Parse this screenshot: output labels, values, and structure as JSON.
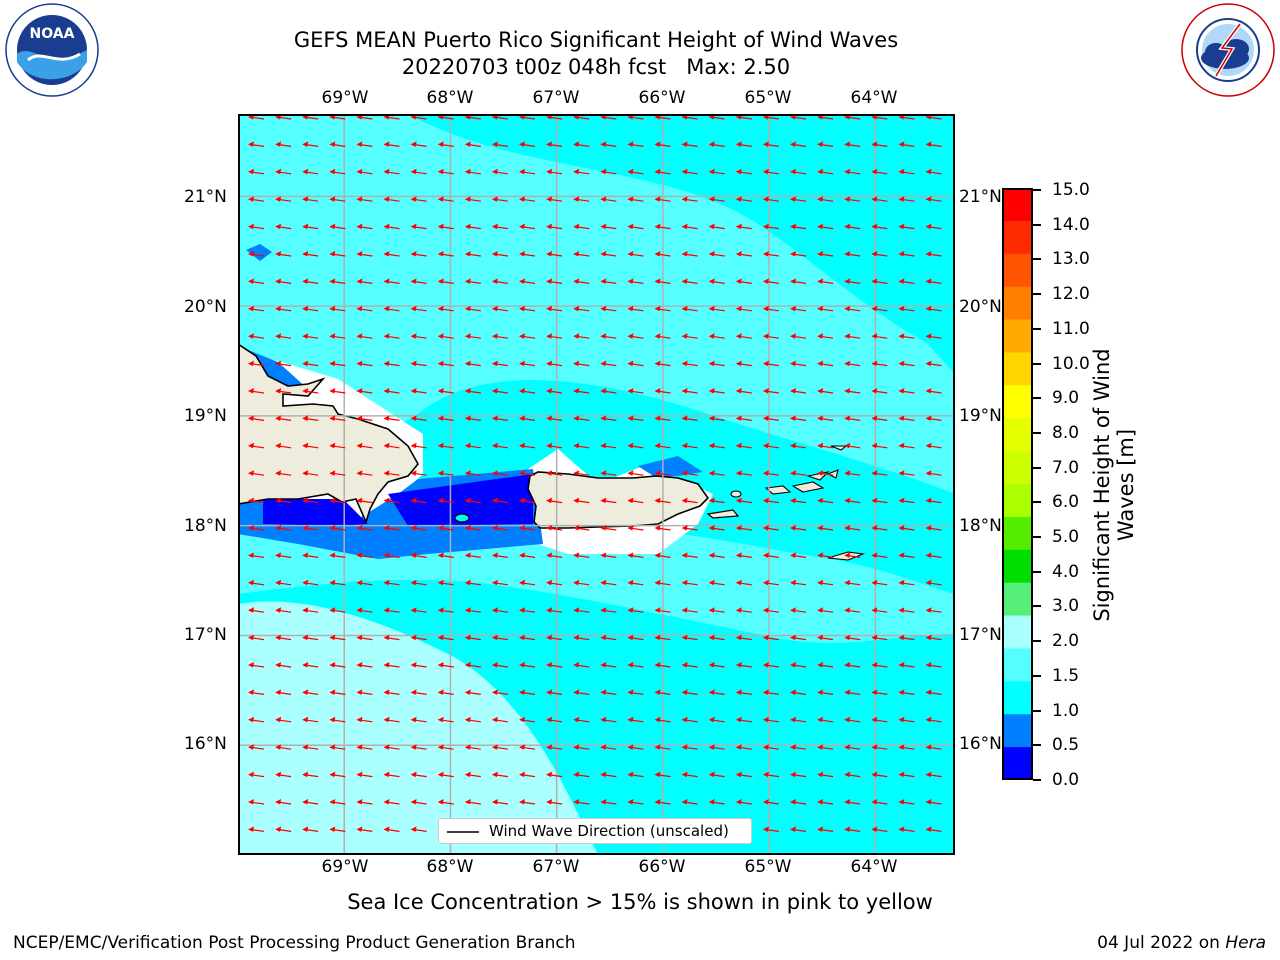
{
  "header": {
    "title_line1": "GEFS MEAN Puerto Rico Significant Height of Wind Waves",
    "title_line2": "20220703 t00z 048h fcst   Max: 2.50"
  },
  "logos": {
    "noaa": {
      "text": "NOAA",
      "ring_text": "NATIONAL OCEANIC AND ATMOSPHERIC ADMINISTRATION · U.S. DEPARTMENT OF COMMERCE",
      "icon": "noaa-logo"
    },
    "nws": {
      "ring_text": "NATIONAL WEATHER SERVICE",
      "icon": "nws-logo"
    }
  },
  "map": {
    "lon_labels": [
      "69°W",
      "68°W",
      "67°W",
      "66°W",
      "65°W",
      "64°W"
    ],
    "lat_labels": [
      "21°N",
      "20°N",
      "19°N",
      "18°N",
      "17°N",
      "16°N"
    ],
    "extent": {
      "lon_min": -70.0,
      "lon_max": -63.25,
      "lat_min": 15.0,
      "lat_max": 21.75
    },
    "grid": true,
    "arrow_direction": "westward",
    "colors": {
      "land": "#eeecdd",
      "arrow": "#ff0000",
      "grid": "#b0b0b0"
    },
    "legend": {
      "label": "Wind Wave Direction (unscaled)",
      "placement": "bottom-center"
    }
  },
  "colorbar": {
    "label_line1": "Significant Height of Wind",
    "label_line2": "Waves [m]",
    "ticks": [
      "15.0",
      "14.0",
      "13.0",
      "12.0",
      "11.0",
      "10.0",
      "9.0",
      "8.0",
      "7.0",
      "6.0",
      "5.0",
      "4.0",
      "3.0",
      "2.0",
      "1.5",
      "1.0",
      "0.5",
      "0.0"
    ],
    "colors": [
      "#ff0000",
      "#ff2a00",
      "#ff5500",
      "#ff8000",
      "#ffaa00",
      "#ffd500",
      "#ffff00",
      "#e6ff00",
      "#ccff00",
      "#aaff00",
      "#55ee00",
      "#00dd00",
      "#55ee77",
      "#aaffff",
      "#55ffff",
      "#00ffff",
      "#0080ff",
      "#0000ff"
    ]
  },
  "footer": {
    "note": "Sea Ice Concentration > 15% is shown in pink to yellow",
    "branch": "NCEP/EMC/Verification Post Processing Product Generation Branch",
    "date_prefix": "04 Jul 2022 on ",
    "host": "Hera"
  }
}
